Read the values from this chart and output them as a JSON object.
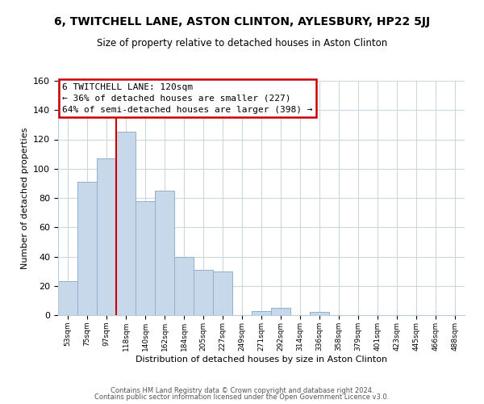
{
  "title": "6, TWITCHELL LANE, ASTON CLINTON, AYLESBURY, HP22 5JJ",
  "subtitle": "Size of property relative to detached houses in Aston Clinton",
  "xlabel": "Distribution of detached houses by size in Aston Clinton",
  "ylabel": "Number of detached properties",
  "bar_color": "#c8d8eb",
  "bar_edge_color": "#90b0cc",
  "bins": [
    "53sqm",
    "75sqm",
    "97sqm",
    "118sqm",
    "140sqm",
    "162sqm",
    "184sqm",
    "205sqm",
    "227sqm",
    "249sqm",
    "271sqm",
    "292sqm",
    "314sqm",
    "336sqm",
    "358sqm",
    "379sqm",
    "401sqm",
    "423sqm",
    "445sqm",
    "466sqm",
    "488sqm"
  ],
  "values": [
    23,
    91,
    107,
    125,
    78,
    85,
    40,
    31,
    30,
    0,
    3,
    5,
    0,
    2,
    0,
    0,
    0,
    0,
    0,
    0,
    0
  ],
  "vline_color": "#cc0000",
  "vline_bin_index": 3,
  "annotation_text_line1": "6 TWITCHELL LANE: 120sqm",
  "annotation_text_line2": "← 36% of detached houses are smaller (227)",
  "annotation_text_line3": "64% of semi-detached houses are larger (398) →",
  "ylim": [
    0,
    160
  ],
  "yticks": [
    0,
    20,
    40,
    60,
    80,
    100,
    120,
    140,
    160
  ],
  "footer_line1": "Contains HM Land Registry data © Crown copyright and database right 2024.",
  "footer_line2": "Contains public sector information licensed under the Open Government Licence v3.0.",
  "background_color": "#ffffff",
  "grid_color": "#ccd8e0"
}
